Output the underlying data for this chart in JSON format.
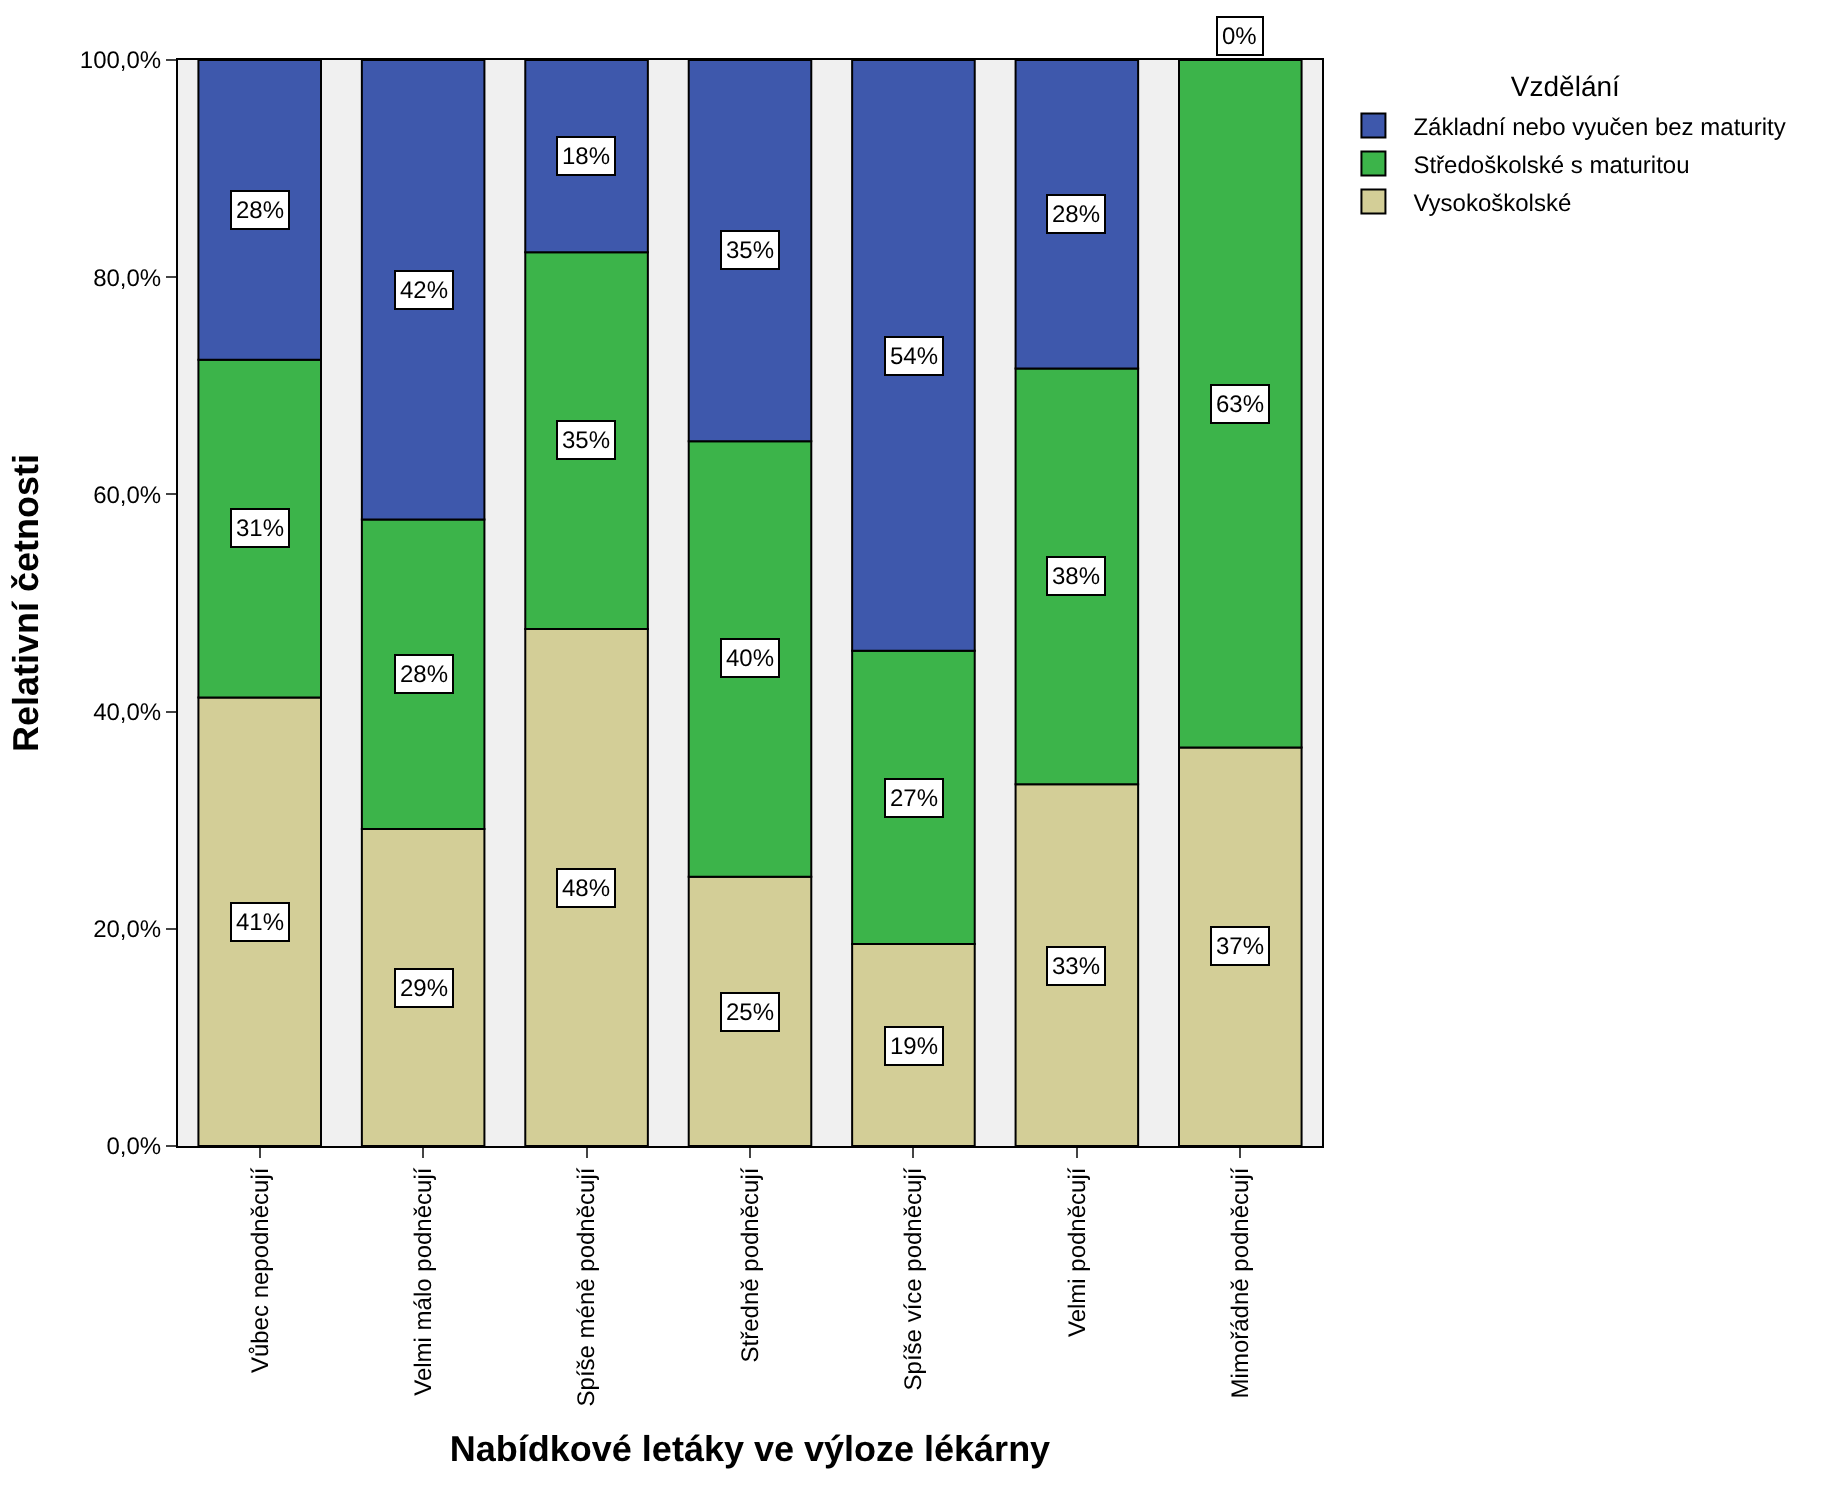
{
  "chart_data": {
    "type": "bar",
    "stacked": true,
    "xlabel": "Nabídkové letáky ve výloze lékárny",
    "ylabel": "Relativní četnosti",
    "legend_title": "Vzdělání",
    "legend": "top right",
    "categories": [
      "Vůbec nepodněcují",
      "Velmi málo podněcují",
      "Spíše méně podněcují",
      "Středně podněcují",
      "Spíše více podněcují",
      "Velmi podněcují",
      "Mimořádně podněcují"
    ],
    "series": [
      {
        "name": "Vysokoškolské",
        "color": "#d3ce97",
        "values": [
          41.3,
          29.2,
          47.6,
          24.8,
          18.6,
          33.3,
          36.7
        ],
        "value_labels": [
          "41%",
          "29%",
          "48%",
          "25%",
          "19%",
          "33%",
          "37%"
        ]
      },
      {
        "name": "Středoškolské s maturitou",
        "color": "#3cb44a",
        "values": [
          31.1,
          28.5,
          34.7,
          40.1,
          27.0,
          38.3,
          63.3
        ],
        "value_labels": [
          "31%",
          "28%",
          "35%",
          "40%",
          "27%",
          "38%",
          "63%"
        ]
      },
      {
        "name": "Základní nebo vyučen bez maturity",
        "color": "#3e58ac",
        "values": [
          27.6,
          42.3,
          17.7,
          35.1,
          54.4,
          28.4,
          0
        ],
        "value_labels": [
          "28%",
          "42%",
          "18%",
          "35%",
          "54%",
          "28%",
          "0%"
        ]
      }
    ],
    "ylim": [
      0,
      100
    ],
    "yticks": [
      {
        "value": 0,
        "label": "0,0%"
      },
      {
        "value": 20,
        "label": "20,0%"
      },
      {
        "value": 40,
        "label": "40,0%"
      },
      {
        "value": 60,
        "label": "60,0%"
      },
      {
        "value": 80,
        "label": "80,0%"
      },
      {
        "value": 100,
        "label": "100,0%"
      }
    ],
    "grid": false
  }
}
